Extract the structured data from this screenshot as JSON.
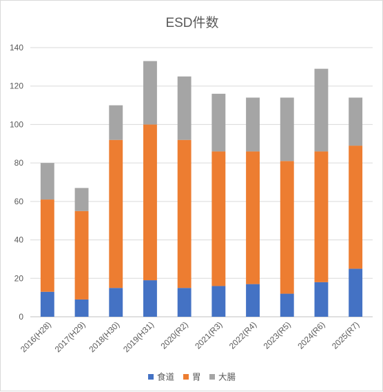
{
  "chart_data": {
    "type": "bar",
    "stacked": true,
    "title": "ESD件数",
    "xlabel": "",
    "ylabel": "",
    "categories": [
      "2016(H28)",
      "2017(H29)",
      "2018(H30)",
      "2019(H31)",
      "2020(R2)",
      "2021(R3)",
      "2022(R4)",
      "2023(R5)",
      "2024(R6)",
      "2025(R7)"
    ],
    "series": [
      {
        "name": "食道",
        "color": "#4472c4",
        "values": [
          13,
          9,
          15,
          19,
          15,
          16,
          17,
          12,
          18,
          25
        ]
      },
      {
        "name": "胃",
        "color": "#ed7d31",
        "values": [
          48,
          46,
          77,
          81,
          77,
          70,
          69,
          69,
          68,
          64
        ]
      },
      {
        "name": "大腸",
        "color": "#a5a5a5",
        "values": [
          19,
          12,
          18,
          33,
          33,
          30,
          28,
          33,
          43,
          25
        ]
      }
    ],
    "ylim": [
      0,
      140
    ],
    "yticks": [
      0,
      20,
      40,
      60,
      80,
      100,
      120,
      140
    ],
    "grid": true,
    "legend": "bottom"
  }
}
